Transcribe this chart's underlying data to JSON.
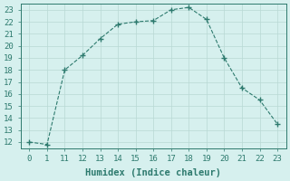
{
  "x_indices": [
    0,
    1,
    2,
    3,
    4,
    5,
    6,
    7,
    8,
    9,
    10,
    11,
    12,
    13,
    14
  ],
  "x_labels": [
    "0",
    "1",
    "11",
    "12",
    "13",
    "14",
    "15",
    "16",
    "17",
    "18",
    "19",
    "20",
    "21",
    "22",
    "23"
  ],
  "y": [
    12.0,
    11.8,
    18.0,
    19.2,
    20.6,
    21.8,
    22.0,
    22.1,
    23.0,
    23.2,
    22.2,
    19.0,
    16.5,
    15.5,
    13.5
  ],
  "xlabel": "Humidex (Indice chaleur)",
  "xlim": [
    -0.5,
    14.5
  ],
  "ylim": [
    11.5,
    23.5
  ],
  "yticks": [
    12,
    13,
    14,
    15,
    16,
    17,
    18,
    19,
    20,
    21,
    22,
    23
  ],
  "line_color": "#2d7a6e",
  "marker_color": "#2d7a6e",
  "bg_color": "#d6f0ee",
  "grid_color": "#b8d8d4",
  "xlabel_color": "#2d7a6e",
  "tick_color": "#2d7a6e",
  "label_fontsize": 7.5,
  "tick_fontsize": 6.5
}
